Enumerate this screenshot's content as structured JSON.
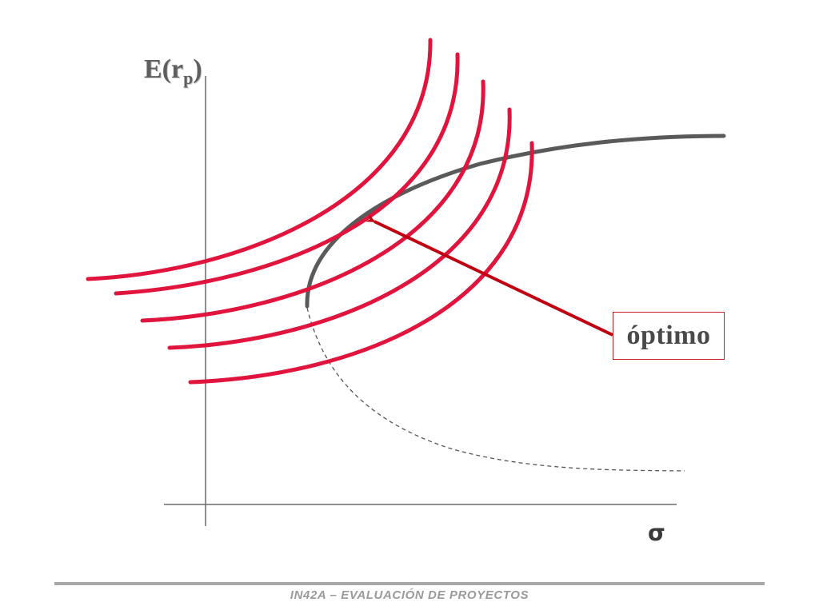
{
  "diagram": {
    "y_axis_label": "E(r",
    "y_axis_subscript": "p",
    "y_axis_close": ")",
    "x_axis_label": "σ",
    "callout_label": "óptimo"
  },
  "footer": {
    "text": "IN42A – EVALUACIÓN DE PROYECTOS"
  },
  "colors": {
    "indifference_curves": "#e0143c",
    "frontier": "#5a5a5a",
    "arrow": "#c00010",
    "axes": "#6a6a6a"
  }
}
